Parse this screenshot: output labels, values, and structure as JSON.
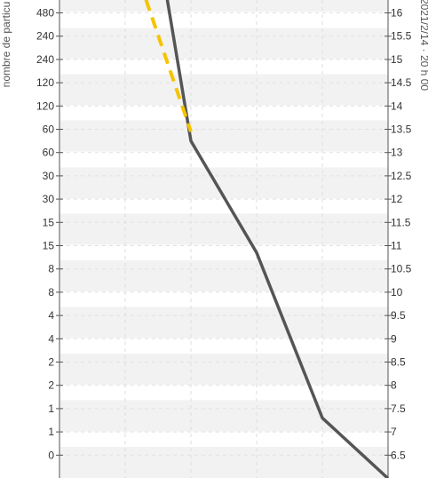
{
  "chart_data": {
    "type": "line",
    "ylabel_left": "nombre de particu",
    "ylabel_right": "2021/2/14 · 20 h 00",
    "left_ticks": [
      "480",
      "240",
      "240",
      "120",
      "120",
      "60",
      "60",
      "30",
      "30",
      "15",
      "15",
      "8",
      "8",
      "4",
      "4",
      "2",
      "2",
      "1",
      "1",
      "0"
    ],
    "right_ticks": [
      "16",
      "15.5",
      "15",
      "14.5",
      "14",
      "13.5",
      "13",
      "12.5",
      "12",
      "11.5",
      "11",
      "10.5",
      "10",
      "9.5",
      "9",
      "8.5",
      "8",
      "7.5",
      "7",
      "6.5"
    ],
    "right_range": [
      6.0,
      16.25
    ],
    "grid": true,
    "series": [
      {
        "color": "#555555",
        "style": "solid",
        "x": [
          0.615,
          1.0,
          2.0,
          3.0,
          4.0
        ],
        "y": [
          16.5,
          13.25,
          10.85,
          7.3,
          6.0
        ]
      },
      {
        "color": "#f5c400",
        "style": "dashed",
        "x": [
          -0.05,
          1.0
        ],
        "y": [
          17.8,
          13.45
        ]
      }
    ],
    "x_range": [
      -1.0,
      4.0
    ]
  }
}
